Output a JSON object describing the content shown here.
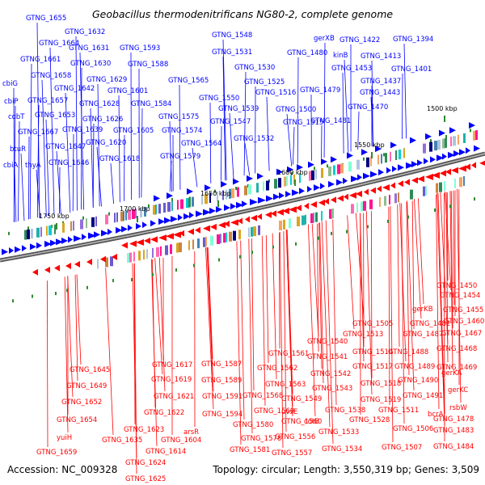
{
  "title": "Geobacillus thermodenitrificans NG80-2, complete genome",
  "accession": "Accession: NC_009328",
  "summary": "Topology: circular; Length: 3,550,319 bp; Genes: 3,509",
  "colors": {
    "forward": "#0000ff",
    "reverse": "#ff0000",
    "backbone": "#808080",
    "tick": "#2e8b2e"
  },
  "ticks": [
    "1500 kbp",
    "1550 kbp",
    "1600 kbp",
    "1650 kbp",
    "1700 kbp",
    "1750 kbp"
  ],
  "forward_genes": [
    "GTNG_1655",
    "GTNG_1664",
    "GTNG_1632",
    "GTNG_1661",
    "GTNG_1631",
    "GTNG_1593",
    "GTNG_1548",
    "GTNG_1531",
    "gerXB",
    "GTNG_1422",
    "GTNG_1394",
    "cbiG",
    "GTNG_1658",
    "GTNG_1630",
    "GTNG_1588",
    "GTNG_1480",
    "kinB",
    "GTNG_1413",
    "GTNG_1453",
    "GTNG_1530",
    "GTNG_1401",
    "cbiP",
    "GTNG_1657",
    "GTNG_1642",
    "GTNG_1629",
    "GTNG_1565",
    "GTNG_1525",
    "GTNG_1437",
    "GTNG_1601",
    "GTNG_1479",
    "GTNG_1516",
    "GTNG_1443",
    "GTNG_1628",
    "GTNG_1584",
    "GTNG_1550",
    "GTNG_1653",
    "GTNG_1470",
    "cobT",
    "GTNG_1539",
    "GTNG_1500",
    "GTNG_1626",
    "GTNG_1575",
    "GTNG_1547",
    "GTNG_1515",
    "GTNG_1481",
    "GTNG_1639",
    "GTNG_1667",
    "GTNG_1605",
    "GTNG_1574",
    "GTNG_1620",
    "GTNG_1532",
    "GTNG_1564",
    "btuR",
    "GTNG_1647",
    "GTNG_1618",
    "GTNG_1579",
    "cbiA",
    "thyA",
    "GTNG_1646"
  ],
  "reverse_genes": [
    "GTNG_1450",
    "GTNG_1454",
    "gerKB",
    "GTNG_1455",
    "GTNG_1505",
    "GTNG_1482",
    "GTNG_1460",
    "GTNG_1513",
    "GTNG_1487",
    "GTNG_1467",
    "GTNG_1540",
    "GTNG_1561",
    "GTNG_1514",
    "GTNG_1488",
    "GTNG_1468",
    "GTNG_1617",
    "GTNG_1587",
    "GTNG_1541",
    "GTNG_1645",
    "GTNG_1562",
    "GTNG_1469",
    "GTNG_1619",
    "GTNG_1589",
    "GTNG_1517",
    "GTNG_1489",
    "gerKA",
    "GTNG_1542",
    "GTNG_1490",
    "GTNG_1563",
    "GTNG_1649",
    "GTNG_1518",
    "GTNG_1621",
    "GTNG_1591",
    "GTNG_1543",
    "GTNG_1568",
    "gerKC",
    "GTNG_1491",
    "GTNG_1549",
    "GTNG_1652",
    "GTNG_1519",
    "GTNG_1622",
    "GTNG_1594",
    "GTNG_1569",
    "uvsE",
    "GTNG_1538",
    "bcrA",
    "GTNG_1511",
    "rsbW",
    "GTNG_1654",
    "GTNG_1528",
    "GTNG_1580",
    "GTNG_1560",
    "cotB",
    "GTNG_1478",
    "GTNG_1623",
    "arsR",
    "GTNG_1533",
    "GTNG_1506",
    "GTNG_1483",
    "yuiH",
    "GTNG_1635",
    "GTNG_1604",
    "GTNG_1578",
    "GTNG_1556",
    "GTNG_1614",
    "GTNG_1581",
    "GTNG_1534",
    "GTNG_1507",
    "GTNG_1484",
    "GTNG_1659",
    "GTNG_1557",
    "GTNG_1624",
    "GTNG_1625"
  ]
}
